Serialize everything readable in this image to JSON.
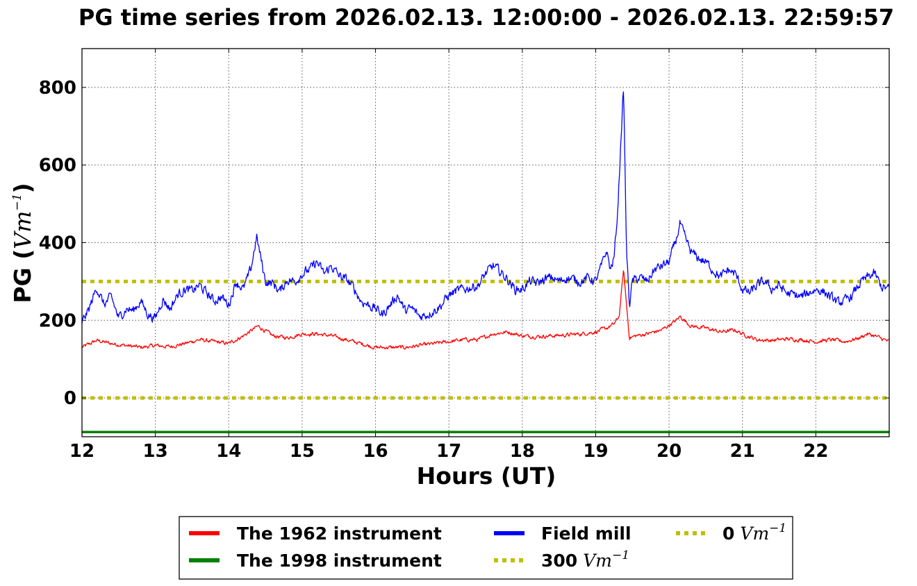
{
  "chart_data": {
    "type": "line",
    "title": "PG time series from 2026.02.13. 12:00:00 - 2026.02.13. 22:59:57",
    "xlabel": "Hours (UT)",
    "ylabel": {
      "prefix": "PG (",
      "math_base": "Vm",
      "math_exp": "−1",
      "suffix": ")"
    },
    "xlim": [
      12,
      23
    ],
    "ylim": [
      -100,
      900
    ],
    "xticks": [
      12,
      13,
      14,
      15,
      16,
      17,
      18,
      19,
      20,
      21,
      22
    ],
    "yticks": [
      0,
      200,
      400,
      600,
      800
    ],
    "grid": true,
    "legend_position": "below",
    "series": [
      {
        "name": "Field mill",
        "color": "#0000ff",
        "x": [
          12.0,
          12.1,
          12.2,
          12.3,
          12.4,
          12.5,
          12.6,
          12.7,
          12.8,
          12.9,
          13.0,
          13.1,
          13.2,
          13.3,
          13.4,
          13.5,
          13.6,
          13.7,
          13.8,
          13.9,
          14.0,
          14.1,
          14.2,
          14.3,
          14.38,
          14.5,
          14.6,
          14.7,
          14.8,
          14.9,
          15.0,
          15.1,
          15.2,
          15.3,
          15.4,
          15.5,
          15.6,
          15.7,
          15.8,
          15.9,
          16.0,
          16.1,
          16.2,
          16.3,
          16.4,
          16.5,
          16.6,
          16.7,
          16.8,
          16.9,
          17.0,
          17.1,
          17.2,
          17.3,
          17.4,
          17.5,
          17.6,
          17.7,
          17.8,
          17.9,
          18.0,
          18.1,
          18.2,
          18.3,
          18.4,
          18.5,
          18.6,
          18.7,
          18.8,
          18.9,
          19.0,
          19.1,
          19.15,
          19.2,
          19.25,
          19.3,
          19.35,
          19.38,
          19.42,
          19.46,
          19.5,
          19.6,
          19.7,
          19.8,
          19.9,
          20.0,
          20.1,
          20.15,
          20.2,
          20.3,
          20.4,
          20.5,
          20.6,
          20.7,
          20.8,
          20.9,
          21.0,
          21.1,
          21.2,
          21.3,
          21.4,
          21.5,
          21.6,
          21.7,
          21.8,
          21.9,
          22.0,
          22.1,
          22.2,
          22.3,
          22.4,
          22.5,
          22.6,
          22.7,
          22.8,
          22.9,
          23.0
        ],
        "y": [
          195,
          230,
          285,
          240,
          260,
          205,
          230,
          225,
          250,
          215,
          205,
          255,
          230,
          265,
          280,
          275,
          290,
          270,
          250,
          260,
          240,
          300,
          280,
          330,
          415,
          300,
          295,
          275,
          305,
          300,
          320,
          330,
          350,
          320,
          340,
          315,
          305,
          285,
          250,
          240,
          230,
          215,
          240,
          265,
          225,
          230,
          210,
          215,
          225,
          240,
          265,
          275,
          280,
          285,
          290,
          320,
          340,
          325,
          305,
          280,
          280,
          300,
          295,
          305,
          310,
          300,
          310,
          305,
          300,
          310,
          300,
          350,
          380,
          330,
          360,
          480,
          690,
          800,
          380,
          240,
          300,
          310,
          300,
          330,
          340,
          350,
          410,
          450,
          420,
          375,
          360,
          350,
          330,
          310,
          330,
          320,
          280,
          270,
          290,
          300,
          280,
          290,
          270,
          265,
          260,
          270,
          280,
          275,
          260,
          245,
          250,
          265,
          295,
          310,
          320,
          285,
          280
        ],
        "noise": 22
      },
      {
        "name": "The 1962 instrument",
        "color": "#ff0000",
        "x": [
          12.0,
          12.2,
          12.4,
          12.6,
          12.8,
          13.0,
          13.2,
          13.4,
          13.6,
          13.8,
          14.0,
          14.2,
          14.4,
          14.6,
          14.8,
          15.0,
          15.2,
          15.4,
          15.6,
          15.8,
          16.0,
          16.2,
          16.4,
          16.6,
          16.8,
          17.0,
          17.2,
          17.4,
          17.6,
          17.8,
          18.0,
          18.2,
          18.4,
          18.6,
          18.8,
          19.0,
          19.15,
          19.25,
          19.32,
          19.38,
          19.42,
          19.46,
          19.55,
          19.7,
          19.9,
          20.1,
          20.15,
          20.3,
          20.5,
          20.7,
          20.9,
          21.0,
          21.2,
          21.4,
          21.6,
          21.8,
          22.0,
          22.2,
          22.4,
          22.6,
          22.7,
          22.8,
          23.0
        ],
        "y": [
          130,
          148,
          140,
          135,
          130,
          135,
          132,
          140,
          150,
          145,
          140,
          160,
          185,
          160,
          155,
          165,
          165,
          160,
          150,
          140,
          130,
          130,
          130,
          135,
          140,
          145,
          150,
          150,
          165,
          170,
          160,
          158,
          160,
          162,
          165,
          170,
          180,
          190,
          210,
          330,
          240,
          155,
          160,
          165,
          175,
          200,
          210,
          185,
          180,
          170,
          175,
          165,
          150,
          148,
          152,
          150,
          145,
          150,
          145,
          155,
          165,
          160,
          145
        ],
        "noise": 9
      },
      {
        "name": "The 1998 instrument",
        "color": "#008000",
        "x": [
          12.0,
          23.0
        ],
        "y": [
          -88,
          -88
        ],
        "noise": 0
      }
    ],
    "reference_lines": [
      {
        "name_value": "300",
        "name_math_base": "Vm",
        "name_math_exp": "−1",
        "y": 300,
        "color": "#bfbf00",
        "style": "dotted"
      },
      {
        "name_value": "0",
        "name_math_base": "Vm",
        "name_math_exp": "−1",
        "y": 0,
        "color": "#bfbf00",
        "style": "dotted"
      }
    ]
  }
}
